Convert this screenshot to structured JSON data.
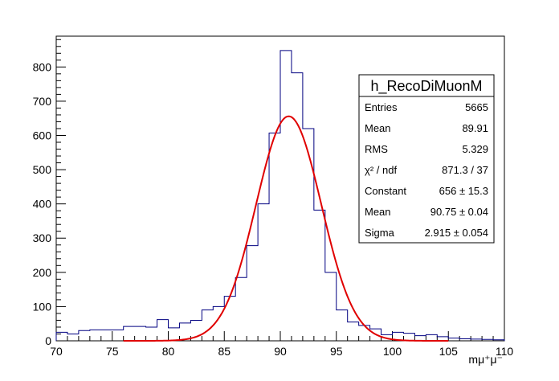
{
  "chart_data": {
    "type": "histogram",
    "title": "h_RecoDiMuonM",
    "xlabel": "m_{μ⁺μ⁻}",
    "ylabel": "",
    "xlim": [
      70,
      110
    ],
    "ylim": [
      0,
      890
    ],
    "x_ticks": [
      70,
      75,
      80,
      85,
      90,
      95,
      100,
      105,
      110
    ],
    "y_ticks": [
      0,
      100,
      200,
      300,
      400,
      500,
      600,
      700,
      800
    ],
    "grid": false,
    "bin_width": 1,
    "bins": [
      [
        70,
        25
      ],
      [
        71,
        20
      ],
      [
        72,
        30
      ],
      [
        73,
        32
      ],
      [
        74,
        32
      ],
      [
        75,
        32
      ],
      [
        76,
        42
      ],
      [
        77,
        42
      ],
      [
        78,
        40
      ],
      [
        79,
        62
      ],
      [
        80,
        38
      ],
      [
        81,
        52
      ],
      [
        82,
        60
      ],
      [
        83,
        90
      ],
      [
        84,
        100
      ],
      [
        85,
        130
      ],
      [
        86,
        185
      ],
      [
        87,
        278
      ],
      [
        88,
        400
      ],
      [
        89,
        607
      ],
      [
        90,
        848
      ],
      [
        91,
        783
      ],
      [
        92,
        620
      ],
      [
        93,
        382
      ],
      [
        94,
        200
      ],
      [
        95,
        90
      ],
      [
        96,
        55
      ],
      [
        97,
        45
      ],
      [
        98,
        35
      ],
      [
        99,
        18
      ],
      [
        100,
        25
      ],
      [
        101,
        22
      ],
      [
        102,
        15
      ],
      [
        103,
        18
      ],
      [
        104,
        12
      ],
      [
        105,
        8
      ],
      [
        106,
        6
      ],
      [
        107,
        5
      ],
      [
        108,
        4
      ],
      [
        109,
        3
      ]
    ],
    "fit": {
      "function": "gaus",
      "constant": 656,
      "mean": 90.75,
      "sigma": 2.915,
      "color": "#e00000"
    },
    "hist_color": "#000080",
    "stats_box": {
      "title": "h_RecoDiMuonM",
      "placement": "top-right",
      "rows": [
        {
          "label": "Entries",
          "value": "5665"
        },
        {
          "label": "Mean",
          "value": "89.91"
        },
        {
          "label": "RMS",
          "value": "5.329"
        },
        {
          "label": "χ² / ndf",
          "value": "871.3 / 37"
        },
        {
          "label": "Constant",
          "value": "656 ± 15.3"
        },
        {
          "label": "Mean",
          "value": "90.75 ± 0.04"
        },
        {
          "label": "Sigma",
          "value": "2.915 ± 0.054"
        }
      ]
    }
  }
}
